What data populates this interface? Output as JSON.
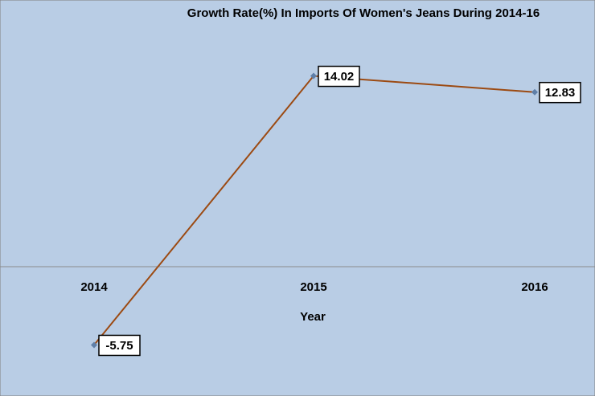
{
  "chart_data": {
    "type": "line",
    "title": "Growth Rate(%) In Imports Of Women's Jeans During 2014-16",
    "xlabel": "Year",
    "ylabel": "",
    "categories": [
      "2014",
      "2015",
      "2016"
    ],
    "series": [
      {
        "values": [
          -5.75,
          14.02,
          12.83
        ]
      }
    ],
    "data_labels": [
      "-5.75",
      "14.02",
      "12.83"
    ],
    "ylim": [
      -9.5,
      19.6
    ],
    "grid": false,
    "legend": "none",
    "colors": {
      "background": "#b9cde5",
      "line": "#9c4a12",
      "marker": "#5f7fa8",
      "zero_line": "#8a8a8a",
      "label_box_fill": "#ffffff",
      "label_box_border": "#000000"
    }
  }
}
